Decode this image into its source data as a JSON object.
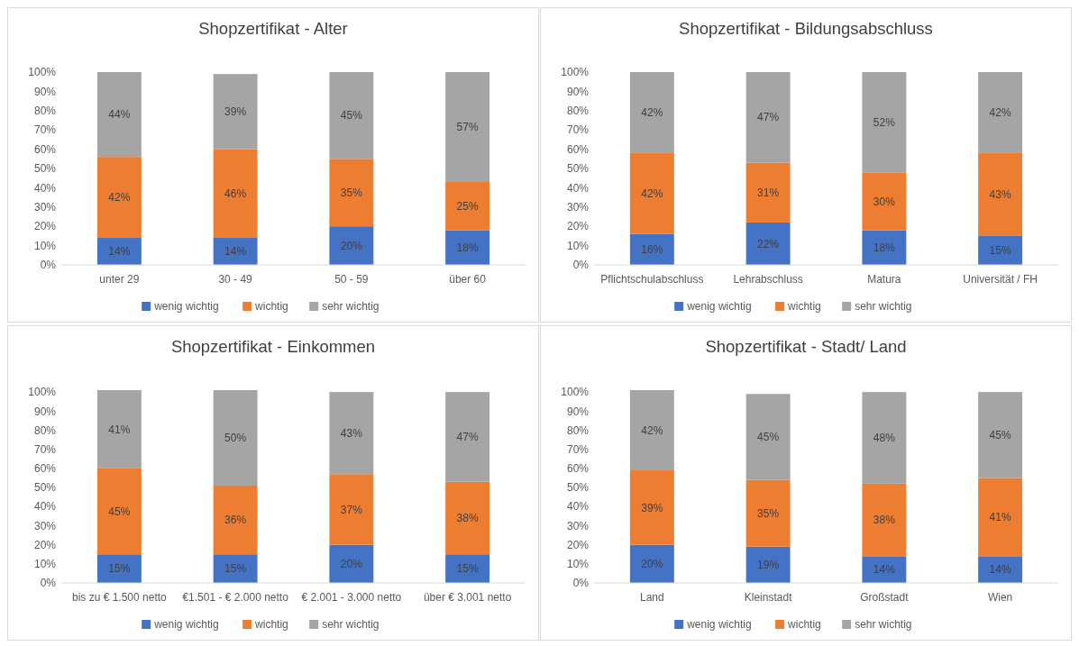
{
  "chart_data": [
    {
      "type": "bar",
      "stacked": true,
      "title": "Shopzertifikat - Alter",
      "categories": [
        "unter 29",
        "30 - 49",
        "50 - 59",
        "über 60"
      ],
      "ylim": [
        0,
        100
      ],
      "yticks": [
        {
          "value": 0,
          "label": "0%"
        },
        {
          "value": 10,
          "label": "10%"
        },
        {
          "value": 20,
          "label": "20%"
        },
        {
          "value": 30,
          "label": "30%"
        },
        {
          "value": 40,
          "label": "40%"
        },
        {
          "value": 50,
          "label": "50%"
        },
        {
          "value": 60,
          "label": "60%"
        },
        {
          "value": 70,
          "label": "70%"
        },
        {
          "value": 80,
          "label": "80%"
        },
        {
          "value": 90,
          "label": "90%"
        },
        {
          "value": 100,
          "label": "100%"
        }
      ],
      "legend": "bottom",
      "grid": false,
      "series": [
        {
          "name": "wenig wichtig",
          "color": "#4472c4",
          "values": [
            14,
            14,
            20,
            18
          ],
          "value_labels": [
            "14%",
            "14%",
            "20%",
            "18%"
          ]
        },
        {
          "name": "wichtig",
          "color": "#ed7d31",
          "values": [
            42,
            46,
            35,
            25
          ],
          "value_labels": [
            "42%",
            "46%",
            "35%",
            "25%"
          ]
        },
        {
          "name": "sehr wichtig",
          "color": "#a5a5a5",
          "values": [
            44,
            39,
            45,
            57
          ],
          "value_labels": [
            "44%",
            "39%",
            "45%",
            "57%"
          ]
        }
      ]
    },
    {
      "type": "bar",
      "stacked": true,
      "title": "Shopzertifikat - Bildungsabschluss",
      "categories": [
        "Pflichtschulabschluss",
        "Lehrabschluss",
        "Matura",
        "Universität / FH"
      ],
      "ylim": [
        0,
        100
      ],
      "yticks": [
        {
          "value": 0,
          "label": "0%"
        },
        {
          "value": 10,
          "label": "10%"
        },
        {
          "value": 20,
          "label": "20%"
        },
        {
          "value": 30,
          "label": "30%"
        },
        {
          "value": 40,
          "label": "40%"
        },
        {
          "value": 50,
          "label": "50%"
        },
        {
          "value": 60,
          "label": "60%"
        },
        {
          "value": 70,
          "label": "70%"
        },
        {
          "value": 80,
          "label": "80%"
        },
        {
          "value": 90,
          "label": "90%"
        },
        {
          "value": 100,
          "label": "100%"
        }
      ],
      "legend": "bottom",
      "grid": false,
      "series": [
        {
          "name": "wenig wichtig",
          "color": "#4472c4",
          "values": [
            16,
            22,
            18,
            15
          ],
          "value_labels": [
            "16%",
            "22%",
            "18%",
            "15%"
          ]
        },
        {
          "name": "wichtig",
          "color": "#ed7d31",
          "values": [
            42,
            31,
            30,
            43
          ],
          "value_labels": [
            "42%",
            "31%",
            "30%",
            "43%"
          ]
        },
        {
          "name": "sehr wichtig",
          "color": "#a5a5a5",
          "values": [
            42,
            47,
            52,
            42
          ],
          "value_labels": [
            "42%",
            "47%",
            "52%",
            "42%"
          ]
        }
      ]
    },
    {
      "type": "bar",
      "stacked": true,
      "title": "Shopzertifikat - Einkommen",
      "categories": [
        "bis zu € 1.500 netto",
        "€1.501 - € 2.000 netto",
        "€ 2.001 - 3.000 netto",
        "über € 3.001 netto"
      ],
      "ylim": [
        0,
        101
      ],
      "yticks": [
        {
          "value": 0,
          "label": "0%"
        },
        {
          "value": 10,
          "label": "10%"
        },
        {
          "value": 20,
          "label": "20%"
        },
        {
          "value": 30,
          "label": "30%"
        },
        {
          "value": 40,
          "label": "40%"
        },
        {
          "value": 50,
          "label": "50%"
        },
        {
          "value": 60,
          "label": "60%"
        },
        {
          "value": 70,
          "label": "70%"
        },
        {
          "value": 80,
          "label": "80%"
        },
        {
          "value": 90,
          "label": "90%"
        },
        {
          "value": 100,
          "label": "100%"
        }
      ],
      "legend": "bottom",
      "grid": false,
      "series": [
        {
          "name": "wenig wichtig",
          "color": "#4472c4",
          "values": [
            15,
            15,
            20,
            15
          ],
          "value_labels": [
            "15%",
            "15%",
            "20%",
            "15%"
          ]
        },
        {
          "name": "wichtig",
          "color": "#ed7d31",
          "values": [
            45,
            36,
            37,
            38
          ],
          "value_labels": [
            "45%",
            "36%",
            "37%",
            "38%"
          ]
        },
        {
          "name": "sehr wichtig",
          "color": "#a5a5a5",
          "values": [
            41,
            50,
            43,
            47
          ],
          "value_labels": [
            "41%",
            "50%",
            "43%",
            "47%"
          ]
        }
      ]
    },
    {
      "type": "bar",
      "stacked": true,
      "title": "Shopzertifikat - Stadt/ Land",
      "categories": [
        "Land",
        "Kleinstadt",
        "Großstadt",
        "Wien"
      ],
      "ylim": [
        0,
        101
      ],
      "yticks": [
        {
          "value": 0,
          "label": "0%"
        },
        {
          "value": 10,
          "label": "10%"
        },
        {
          "value": 20,
          "label": "20%"
        },
        {
          "value": 30,
          "label": "30%"
        },
        {
          "value": 40,
          "label": "40%"
        },
        {
          "value": 50,
          "label": "50%"
        },
        {
          "value": 60,
          "label": "60%"
        },
        {
          "value": 70,
          "label": "70%"
        },
        {
          "value": 80,
          "label": "80%"
        },
        {
          "value": 90,
          "label": "90%"
        },
        {
          "value": 100,
          "label": "100%"
        }
      ],
      "legend": "bottom",
      "grid": false,
      "series": [
        {
          "name": "wenig wichtig",
          "color": "#4472c4",
          "values": [
            20,
            19,
            14,
            14
          ],
          "value_labels": [
            "20%",
            "19%",
            "14%",
            "14%"
          ]
        },
        {
          "name": "wichtig",
          "color": "#ed7d31",
          "values": [
            39,
            35,
            38,
            41
          ],
          "value_labels": [
            "39%",
            "35%",
            "38%",
            "41%"
          ]
        },
        {
          "name": "sehr wichtig",
          "color": "#a5a5a5",
          "values": [
            42,
            45,
            48,
            45
          ],
          "value_labels": [
            "42%",
            "45%",
            "48%",
            "45%"
          ]
        }
      ]
    }
  ]
}
